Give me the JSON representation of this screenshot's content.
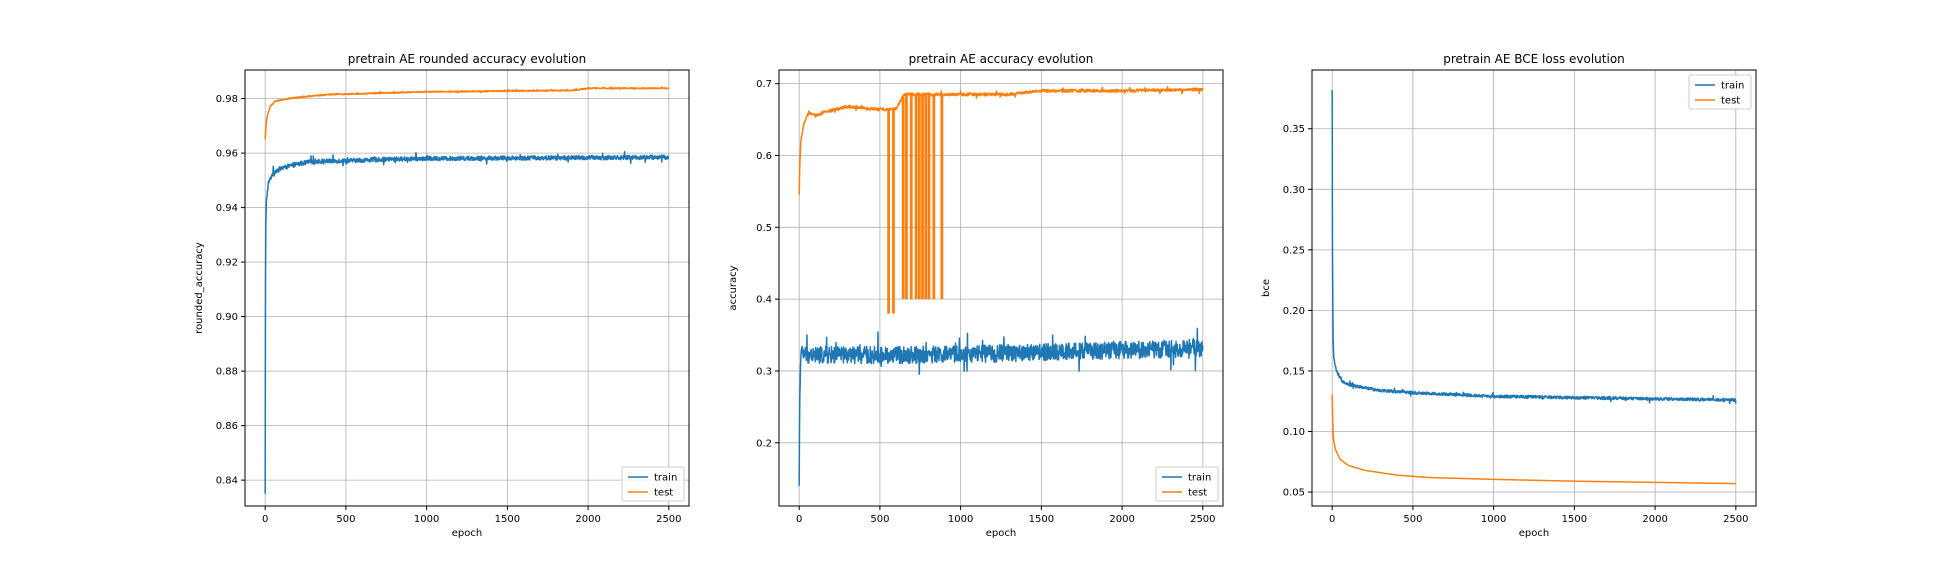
{
  "colors": {
    "train": "#1f77b4",
    "test": "#ff7f0e"
  },
  "chart_data": [
    {
      "type": "line",
      "title": "pretrain AE rounded accuracy evolution",
      "xlabel": "epoch",
      "ylabel": "rounded_accuracy",
      "xlim": [
        -125,
        2625
      ],
      "ylim": [
        0.8305,
        0.9905
      ],
      "xticks": [
        0,
        500,
        1000,
        1500,
        2000,
        2500
      ],
      "xtick_labels": [
        "0",
        "500",
        "1000",
        "1500",
        "2000",
        "2500"
      ],
      "yticks": [
        0.84,
        0.86,
        0.88,
        0.9,
        0.92,
        0.94,
        0.96,
        0.98
      ],
      "ytick_labels": [
        "0.84",
        "0.86",
        "0.88",
        "0.90",
        "0.92",
        "0.94",
        "0.96",
        "0.98"
      ],
      "grid": true,
      "legend": "lower-right",
      "series": [
        {
          "name": "train",
          "color": "#1f77b4",
          "noise": 0.0008,
          "points": [
            [
              0,
              0.835
            ],
            [
              1,
              0.895
            ],
            [
              3,
              0.93
            ],
            [
              8,
              0.943
            ],
            [
              20,
              0.949
            ],
            [
              50,
              0.953
            ],
            [
              100,
              0.9545
            ],
            [
              200,
              0.956
            ],
            [
              300,
              0.957
            ],
            [
              500,
              0.9572
            ],
            [
              800,
              0.9578
            ],
            [
              1000,
              0.958
            ],
            [
              1500,
              0.9582
            ],
            [
              2000,
              0.9583
            ],
            [
              2500,
              0.9585
            ]
          ]
        },
        {
          "name": "test",
          "color": "#ff7f0e",
          "noise": 0.0002,
          "points": [
            [
              0,
              0.965
            ],
            [
              3,
              0.968
            ],
            [
              10,
              0.973
            ],
            [
              30,
              0.977
            ],
            [
              60,
              0.979
            ],
            [
              100,
              0.9795
            ],
            [
              200,
              0.9805
            ],
            [
              400,
              0.9815
            ],
            [
              700,
              0.982
            ],
            [
              1000,
              0.9825
            ],
            [
              1500,
              0.9828
            ],
            [
              1900,
              0.983
            ],
            [
              2000,
              0.9838
            ],
            [
              2500,
              0.9838
            ]
          ]
        }
      ]
    },
    {
      "type": "line",
      "title": "pretrain AE accuracy evolution",
      "xlabel": "epoch",
      "ylabel": "accuracy",
      "xlim": [
        -125,
        2625
      ],
      "ylim": [
        0.112,
        0.719
      ],
      "xticks": [
        0,
        500,
        1000,
        1500,
        2000,
        2500
      ],
      "xtick_labels": [
        "0",
        "500",
        "1000",
        "1500",
        "2000",
        "2500"
      ],
      "yticks": [
        0.2,
        0.3,
        0.4,
        0.5,
        0.6,
        0.7
      ],
      "ytick_labels": [
        "0.2",
        "0.3",
        "0.4",
        "0.5",
        "0.6",
        "0.7"
      ],
      "grid": true,
      "legend": "lower-right",
      "series": [
        {
          "name": "train",
          "color": "#1f77b4",
          "noise": 0.012,
          "points": [
            [
              0,
              0.14
            ],
            [
              2,
              0.22
            ],
            [
              5,
              0.28
            ],
            [
              10,
              0.325
            ],
            [
              50,
              0.322
            ],
            [
              500,
              0.322
            ],
            [
              1000,
              0.323
            ],
            [
              1500,
              0.326
            ],
            [
              2000,
              0.329
            ],
            [
              2500,
              0.332
            ]
          ]
        },
        {
          "name": "test",
          "color": "#ff7f0e",
          "noise": 0.002,
          "points": [
            [
              0,
              0.545
            ],
            [
              3,
              0.58
            ],
            [
              10,
              0.62
            ],
            [
              30,
              0.645
            ],
            [
              60,
              0.66
            ],
            [
              100,
              0.655
            ],
            [
              150,
              0.66
            ],
            [
              300,
              0.668
            ],
            [
              500,
              0.664
            ],
            [
              600,
              0.665
            ],
            [
              650,
              0.685
            ],
            [
              900,
              0.685
            ],
            [
              1300,
              0.685
            ],
            [
              1500,
              0.69
            ],
            [
              2000,
              0.69
            ],
            [
              2500,
              0.692
            ]
          ],
          "dips": [
            [
              550,
              0.38
            ],
            [
              580,
              0.38
            ],
            [
              640,
              0.4
            ],
            [
              660,
              0.4
            ],
            [
              690,
              0.4
            ],
            [
              720,
              0.4
            ],
            [
              740,
              0.4
            ],
            [
              760,
              0.4
            ],
            [
              780,
              0.4
            ],
            [
              800,
              0.4
            ],
            [
              830,
              0.4
            ],
            [
              880,
              0.4
            ]
          ]
        }
      ]
    },
    {
      "type": "line",
      "title": "pretrain AE BCE loss evolution",
      "xlabel": "epoch",
      "ylabel": "bce",
      "xlim": [
        -125,
        2625
      ],
      "ylim": [
        0.0385,
        0.3985
      ],
      "xticks": [
        0,
        500,
        1000,
        1500,
        2000,
        2500
      ],
      "xtick_labels": [
        "0",
        "500",
        "1000",
        "1500",
        "2000",
        "2500"
      ],
      "yticks": [
        0.05,
        0.1,
        0.15,
        0.2,
        0.25,
        0.3,
        0.35
      ],
      "ytick_labels": [
        "0.05",
        "0.10",
        "0.15",
        "0.20",
        "0.25",
        "0.30",
        "0.35"
      ],
      "grid": true,
      "legend": "upper-right",
      "series": [
        {
          "name": "train",
          "color": "#1f77b4",
          "noise": 0.0012,
          "points": [
            [
              0,
              0.382
            ],
            [
              2,
              0.25
            ],
            [
              5,
              0.18
            ],
            [
              10,
              0.16
            ],
            [
              30,
              0.148
            ],
            [
              60,
              0.142
            ],
            [
              100,
              0.139
            ],
            [
              200,
              0.136
            ],
            [
              300,
              0.134
            ],
            [
              500,
              0.132
            ],
            [
              1000,
              0.129
            ],
            [
              1500,
              0.128
            ],
            [
              2000,
              0.127
            ],
            [
              2500,
              0.126
            ]
          ]
        },
        {
          "name": "test",
          "color": "#ff7f0e",
          "noise": 0,
          "points": [
            [
              0,
              0.13
            ],
            [
              5,
              0.1
            ],
            [
              10,
              0.092
            ],
            [
              20,
              0.085
            ],
            [
              50,
              0.077
            ],
            [
              100,
              0.072
            ],
            [
              200,
              0.068
            ],
            [
              400,
              0.064
            ],
            [
              600,
              0.062
            ],
            [
              1000,
              0.0605
            ],
            [
              1500,
              0.059
            ],
            [
              2000,
              0.058
            ],
            [
              2500,
              0.057
            ]
          ]
        }
      ]
    }
  ]
}
